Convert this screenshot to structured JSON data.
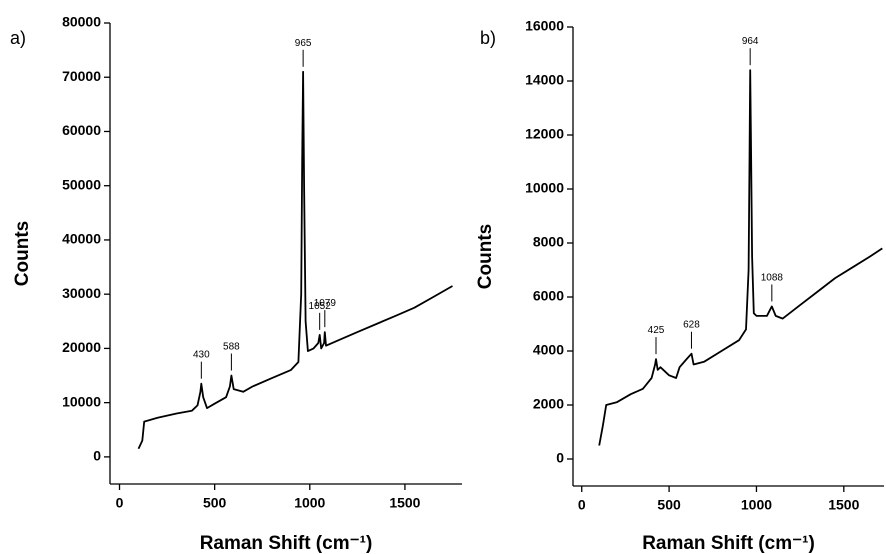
{
  "chart_data": [
    {
      "type": "line",
      "panel_label": "a)",
      "x_label": "Raman Shift (cm⁻¹)",
      "y_label": "Counts",
      "color": "#000000",
      "xlim": [
        -50,
        1800
      ],
      "xticks": [
        0,
        500,
        1000,
        1500
      ],
      "ylim": [
        -5000,
        80000
      ],
      "yticks": [
        0,
        10000,
        20000,
        30000,
        40000,
        50000,
        60000,
        70000,
        80000
      ],
      "x": [
        100,
        120,
        130,
        200,
        300,
        380,
        410,
        425,
        430,
        440,
        460,
        500,
        560,
        580,
        588,
        600,
        650,
        700,
        800,
        900,
        940,
        955,
        960,
        965,
        970,
        978,
        990,
        1020,
        1045,
        1052,
        1060,
        1075,
        1079,
        1085,
        1150,
        1250,
        1350,
        1450,
        1550,
        1650,
        1750
      ],
      "values": [
        1500,
        3000,
        6500,
        7200,
        8000,
        8500,
        9500,
        12000,
        13500,
        11000,
        9000,
        9800,
        11000,
        13000,
        15000,
        12500,
        12000,
        13000,
        14500,
        16000,
        17500,
        30000,
        55000,
        71000,
        50000,
        25000,
        19500,
        20000,
        21000,
        22500,
        20000,
        21000,
        23000,
        20500,
        21500,
        23000,
        24500,
        26000,
        27500,
        29500,
        31500
      ],
      "annotations": [
        {
          "label": "430",
          "x": 430,
          "y": 13500
        },
        {
          "label": "588",
          "x": 588,
          "y": 15000
        },
        {
          "label": "965",
          "x": 965,
          "y": 71000
        },
        {
          "label": "1052",
          "x": 1052,
          "y": 22500
        },
        {
          "label": "1079",
          "x": 1079,
          "y": 23000
        }
      ]
    },
    {
      "type": "line",
      "panel_label": "b)",
      "x_label": "Raman Shift (cm⁻¹)",
      "y_label": "Counts",
      "color": "#000000",
      "xlim": [
        -50,
        1730
      ],
      "xticks": [
        0,
        500,
        1000,
        1500
      ],
      "ylim": [
        -1000,
        16000
      ],
      "yticks": [
        0,
        2000,
        4000,
        6000,
        8000,
        10000,
        12000,
        14000,
        16000
      ],
      "x": [
        100,
        120,
        140,
        200,
        280,
        350,
        400,
        420,
        425,
        435,
        450,
        500,
        540,
        560,
        600,
        628,
        640,
        700,
        800,
        900,
        940,
        955,
        960,
        964,
        968,
        975,
        985,
        1000,
        1060,
        1088,
        1110,
        1150,
        1250,
        1350,
        1450,
        1550,
        1650,
        1720
      ],
      "values": [
        500,
        1200,
        2000,
        2100,
        2400,
        2600,
        3000,
        3500,
        3700,
        3300,
        3400,
        3100,
        3000,
        3400,
        3700,
        3900,
        3500,
        3600,
        4000,
        4400,
        4800,
        7000,
        11000,
        14400,
        12000,
        7500,
        5400,
        5300,
        5300,
        5650,
        5300,
        5200,
        5700,
        6200,
        6700,
        7100,
        7500,
        7800
      ],
      "annotations": [
        {
          "label": "425",
          "x": 425,
          "y": 3700
        },
        {
          "label": "628",
          "x": 628,
          "y": 3900
        },
        {
          "label": "964",
          "x": 964,
          "y": 14400
        },
        {
          "label": "1088",
          "x": 1088,
          "y": 5650
        }
      ]
    }
  ]
}
